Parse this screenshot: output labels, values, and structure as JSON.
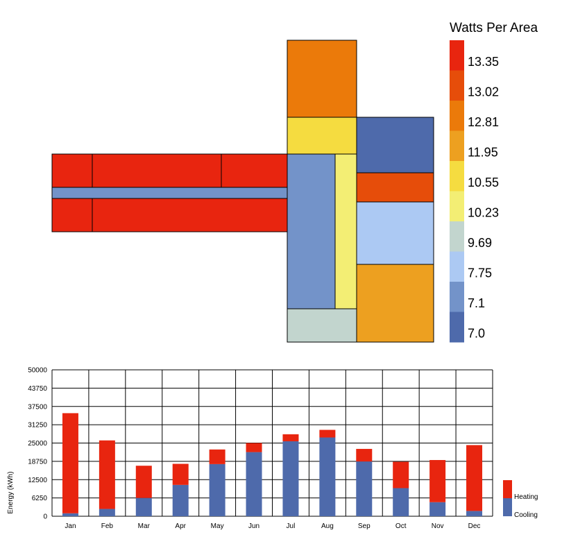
{
  "legend": {
    "title": "Watts Per Area",
    "labels": [
      "13.35",
      "13.02",
      "12.81",
      "11.95",
      "10.55",
      "10.23",
      "9.69",
      "7.75",
      "7.1",
      "7.0"
    ],
    "colors": [
      "#e8250f",
      "#e64d0a",
      "#eb7a0a",
      "#eda020",
      "#f5dc40",
      "#f3ee74",
      "#c2d5ce",
      "#acc9f3",
      "#7393c9",
      "#4e6aab"
    ]
  },
  "floorplan": {
    "zone_colors": [
      "#e8250f",
      "#7393c9",
      "#e8250f",
      "#eb7a0a",
      "#f5dc40",
      "#7393c9",
      "#f3ee74",
      "#c2d5ce",
      "#4e6aab",
      "#e64d0a",
      "#acc9f3",
      "#eda020"
    ]
  },
  "chart_data": {
    "type": "bar",
    "stacked": true,
    "categories": [
      "Jan",
      "Feb",
      "Mar",
      "Apr",
      "May",
      "Jun",
      "Jul",
      "Aug",
      "Sep",
      "Oct",
      "Nov",
      "Dec"
    ],
    "series": [
      {
        "name": "Cooling",
        "color": "#4e6aab",
        "values": [
          1000,
          2500,
          6250,
          10700,
          17800,
          21900,
          25600,
          26900,
          18700,
          9600,
          4800,
          1800
        ]
      },
      {
        "name": "Heating",
        "color": "#e8250f",
        "values": [
          34200,
          23400,
          11000,
          7200,
          5000,
          3100,
          2400,
          2600,
          4300,
          9000,
          14400,
          22500
        ]
      }
    ],
    "ylabel": "Energy (kWh)",
    "ylim": [
      0,
      50000
    ],
    "yticks": [
      "0",
      "6250",
      "12500",
      "18750",
      "25000",
      "31250",
      "37500",
      "43750",
      "50000"
    ],
    "grid": true,
    "legend_position": "right"
  }
}
